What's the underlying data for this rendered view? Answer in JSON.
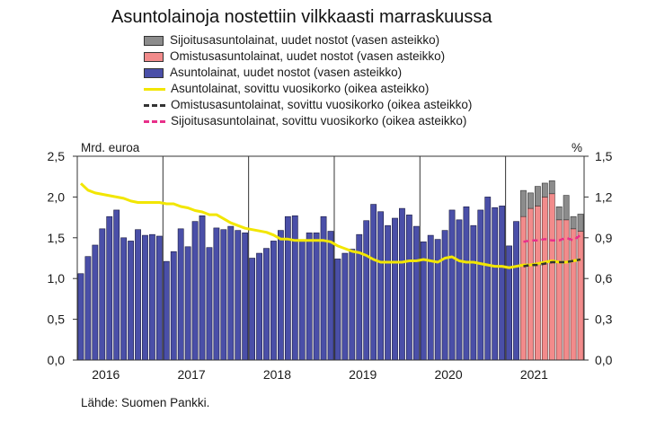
{
  "title": "Asuntolainoja nostettiin vilkkaasti marraskuussa",
  "legend": [
    {
      "label": "Sijoitusasuntolainat, uudet nostot (vasen asteikko)",
      "kind": "bar",
      "color": "#8c8c8c"
    },
    {
      "label": "Omistusasuntolainat, uudet nostot (vasen asteikko)",
      "kind": "bar",
      "color": "#f28b8b"
    },
    {
      "label": "Asuntolainat, uudet nostot (vasen asteikko)",
      "kind": "bar",
      "color": "#4a4fa8"
    },
    {
      "label": "Asuntolainat, sovittu vuosikorko (oikea asteikko)",
      "kind": "line",
      "color": "#f2e600"
    },
    {
      "label": "Omistusasuntolainat, sovittu vuosikorko (oikea asteikko)",
      "kind": "dash",
      "color": "#333333"
    },
    {
      "label": "Sijoitusasuntolainat, sovittu vuosikorko (oikea asteikko)",
      "kind": "dash",
      "color": "#e8308a"
    }
  ],
  "left_unit": "Mrd. euroa",
  "right_unit": "%",
  "source": "Lähde: Suomen Pankki.",
  "chart_data": {
    "type": "bar",
    "x_start": "2016-01",
    "x_end": "2021-11",
    "x_ticks": [
      "2016",
      "2017",
      "2018",
      "2019",
      "2020",
      "2021"
    ],
    "left_axis": {
      "ylim": [
        0,
        2.5
      ],
      "ticks": [
        "0,0",
        "0,5",
        "1,0",
        "1,5",
        "2,0",
        "2,5"
      ]
    },
    "right_axis": {
      "ylim": [
        0,
        1.5
      ],
      "ticks": [
        "0,0",
        "0,3",
        "0,6",
        "0,9",
        "1,2",
        "1,5"
      ]
    },
    "grid": "vertical lines at years",
    "series": [
      {
        "name": "Asuntolainat, uudet nostot (vasen asteikko)",
        "axis": "left",
        "type": "bar",
        "color": "#4a4fa8",
        "values": [
          1.06,
          1.27,
          1.41,
          1.61,
          1.76,
          1.84,
          1.5,
          1.46,
          1.6,
          1.53,
          1.54,
          1.52,
          1.21,
          1.33,
          1.61,
          1.39,
          1.7,
          1.77,
          1.38,
          1.62,
          1.6,
          1.64,
          1.59,
          1.56,
          1.25,
          1.31,
          1.37,
          1.46,
          1.59,
          1.76,
          1.77,
          1.47,
          1.56,
          1.56,
          1.76,
          1.58,
          1.24,
          1.31,
          1.36,
          1.54,
          1.71,
          1.91,
          1.82,
          1.65,
          1.74,
          1.86,
          1.78,
          1.64,
          1.45,
          1.53,
          1.48,
          1.59,
          1.84,
          1.72,
          1.88,
          1.65,
          1.84,
          2.0,
          1.87,
          1.89,
          1.4,
          1.7
        ]
      },
      {
        "name": "Omistusasuntolainat, uudet nostot (vasen asteikko)",
        "axis": "left",
        "type": "bar",
        "color": "#f28b8b",
        "start": "2021-03",
        "values": [
          1.76,
          1.86,
          1.89,
          2.0,
          2.04,
          1.72,
          1.72,
          1.61,
          1.58
        ]
      },
      {
        "name": "Sijoitusasuntolainat, uudet nostot (vasen asteikko)",
        "axis": "left",
        "type": "bar",
        "color": "#8c8c8c",
        "start": "2021-03",
        "values": [
          0.32,
          0.19,
          0.24,
          0.17,
          0.16,
          0.16,
          0.3,
          0.15,
          0.21
        ]
      },
      {
        "name": "Asuntolainat, sovittu vuosikorko (oikea asteikko)",
        "axis": "right",
        "type": "line",
        "color": "#f2e600",
        "values": [
          1.3,
          1.25,
          1.23,
          1.22,
          1.21,
          1.2,
          1.19,
          1.17,
          1.16,
          1.16,
          1.16,
          1.16,
          1.15,
          1.15,
          1.13,
          1.12,
          1.1,
          1.09,
          1.07,
          1.07,
          1.04,
          1.01,
          0.99,
          0.97,
          0.96,
          0.95,
          0.94,
          0.92,
          0.89,
          0.89,
          0.88,
          0.88,
          0.88,
          0.88,
          0.88,
          0.87,
          0.84,
          0.82,
          0.8,
          0.79,
          0.77,
          0.74,
          0.72,
          0.72,
          0.72,
          0.72,
          0.73,
          0.73,
          0.74,
          0.73,
          0.72,
          0.75,
          0.76,
          0.73,
          0.72,
          0.72,
          0.71,
          0.7,
          0.69,
          0.69,
          0.68,
          0.69,
          0.7,
          0.7,
          0.71,
          0.72,
          0.73,
          0.72,
          0.72,
          0.73,
          0.74
        ]
      },
      {
        "name": "Omistusasuntolainat, sovittu vuosikorko (oikea asteikko)",
        "axis": "right",
        "type": "dash",
        "color": "#333333",
        "start": "2021-03",
        "values": [
          0.69,
          0.7,
          0.7,
          0.71,
          0.72,
          0.72,
          0.72,
          0.73,
          0.74
        ]
      },
      {
        "name": "Sijoitusasuntolainat, sovittu vuosikorko (oikea asteikko)",
        "axis": "right",
        "type": "dash",
        "color": "#e8308a",
        "start": "2021-03",
        "values": [
          0.87,
          0.88,
          0.88,
          0.89,
          0.88,
          0.88,
          0.9,
          0.88,
          0.92
        ]
      }
    ]
  }
}
